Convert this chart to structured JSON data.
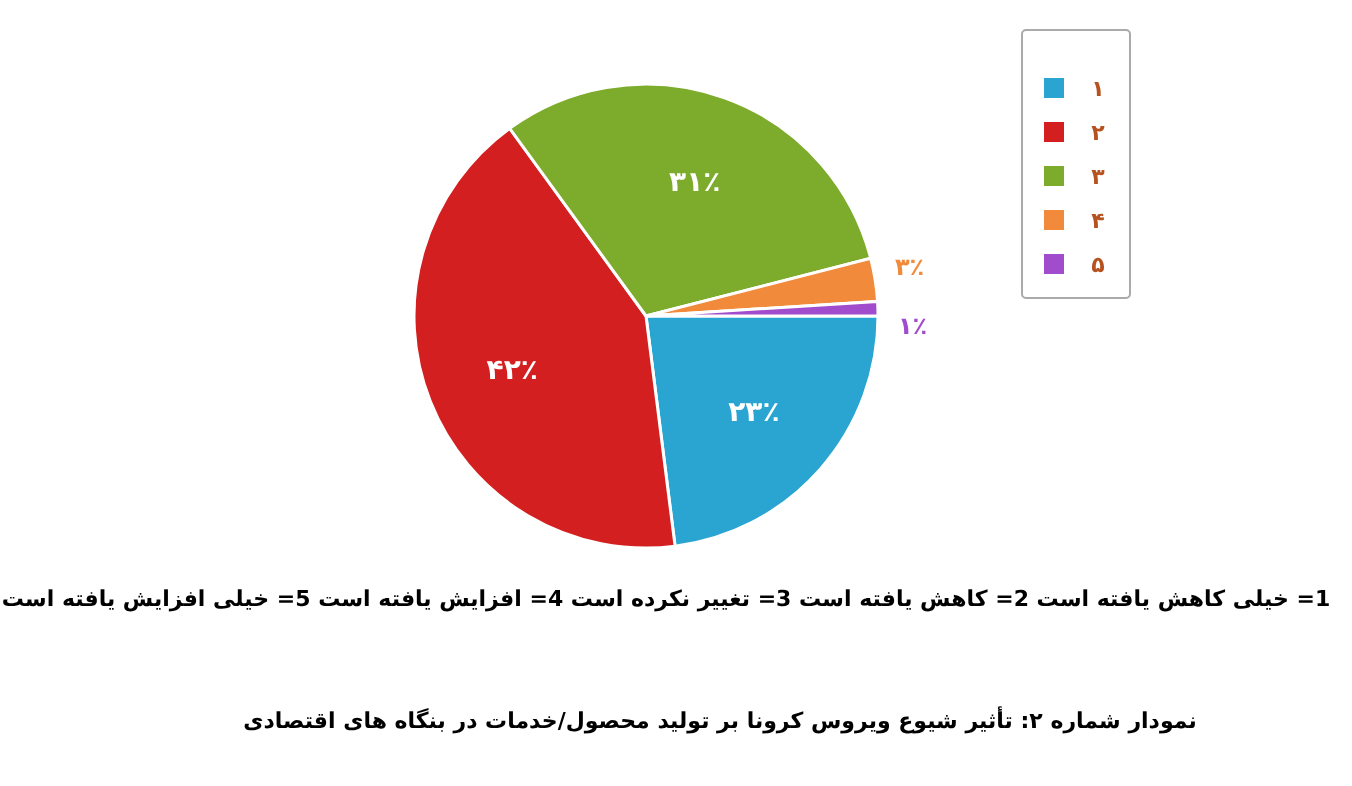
{
  "chart_data": {
    "type": "pie",
    "title": "نمودار شماره ۲: تأثیر شیوع ویروس کرونا بر تولید محصول/خدمات در بنگاه های اقتصادی",
    "categories": [
      "۱",
      "۲",
      "۳",
      "۴",
      "۵"
    ],
    "values": [
      23,
      42,
      31,
      3,
      1
    ],
    "colors": [
      "#2aa4d0",
      "#d31f1f",
      "#7dab2c",
      "#f18a3a",
      "#a04ccc"
    ],
    "value_labels": [
      "۲۳٪",
      "۴۲٪",
      "۳۱٪",
      "۳٪",
      "۱٪"
    ],
    "legend": "top right",
    "annotations": [
      "1= خیلی کاهش یافته است  2= کاهش یافته است  3= تغییر نکرده است  4= افزایش یافته است  5= خیلی افزایش یافته است"
    ]
  }
}
